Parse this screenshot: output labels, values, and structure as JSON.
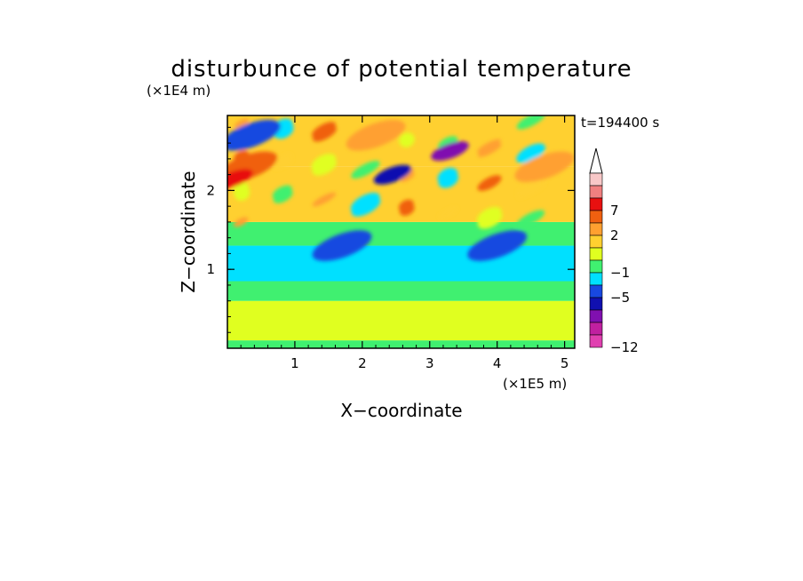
{
  "chart_data": {
    "type": "heatmap",
    "title": "disturbunce of potential temperature",
    "xlabel": "X−coordinate",
    "ylabel": "Z−coordinate",
    "x_scale_label": "(×1E5 m)",
    "y_scale_label": "(×1E4 m)",
    "time_label": "t=194400 s",
    "xlim": [
      0,
      5.15
    ],
    "ylim": [
      0,
      2.95
    ],
    "xticks": [
      "1",
      "2",
      "3",
      "4",
      "5"
    ],
    "yticks": [
      "1",
      "2"
    ],
    "xtick_values": [
      1,
      2,
      3,
      4,
      5
    ],
    "ytick_values": [
      1,
      2
    ],
    "colorbar": {
      "labels": [
        "7",
        "2",
        "−1",
        "−5",
        "−12"
      ],
      "label_levels": [
        7,
        2,
        -1,
        -5,
        -12
      ],
      "level_colors": [
        {
          "level": -12,
          "color": "#e040b0"
        },
        {
          "level": -10,
          "color": "#c020a0"
        },
        {
          "level": -8,
          "color": "#8010b0"
        },
        {
          "level": -6,
          "color": "#1010b0"
        },
        {
          "level": -5,
          "color": "#1848e0"
        },
        {
          "level": -3,
          "color": "#00e0ff"
        },
        {
          "level": -1,
          "color": "#40f070"
        },
        {
          "level": 0,
          "color": "#e0ff20"
        },
        {
          "level": 1,
          "color": "#ffd030"
        },
        {
          "level": 2,
          "color": "#ffa030"
        },
        {
          "level": 4,
          "color": "#f06010"
        },
        {
          "level": 7,
          "color": "#e81010"
        },
        {
          "level": 9,
          "color": "#f08080"
        },
        {
          "level": 11,
          "color": "#f8c8c8"
        }
      ]
    },
    "field_bands": [
      {
        "z_range": [
          0.0,
          0.1
        ],
        "level": -1,
        "note": "near-surface green band"
      },
      {
        "z_range": [
          0.1,
          0.6
        ],
        "level": 0,
        "note": "lower yellow layer"
      },
      {
        "z_range": [
          0.6,
          0.85
        ],
        "level": -1,
        "note": "green layer"
      },
      {
        "z_range": [
          0.85,
          1.3
        ],
        "level": -3,
        "note": "cyan layer"
      },
      {
        "z_range": [
          1.3,
          1.6
        ],
        "level": -1,
        "note": "green layer"
      },
      {
        "z_range": [
          1.6,
          2.3
        ],
        "level": 1,
        "note": "wave pattern region"
      },
      {
        "z_range": [
          2.3,
          2.95
        ],
        "level": 1,
        "note": "upper region"
      }
    ],
    "features": [
      {
        "x": 0.3,
        "z": 2.3,
        "level": 4,
        "note": "warm anomaly upper-left"
      },
      {
        "x": 0.1,
        "z": 2.15,
        "level": 7,
        "note": "red core"
      },
      {
        "x": 0.35,
        "z": 2.7,
        "level": -5,
        "note": "cold anomaly top-left"
      },
      {
        "x": 1.7,
        "z": 1.3,
        "level": -5,
        "note": "cold blob lower layer"
      },
      {
        "x": 2.45,
        "z": 2.2,
        "level": -6,
        "note": "cold band tilted"
      },
      {
        "x": 3.3,
        "z": 2.5,
        "level": -8,
        "note": "coldest core"
      },
      {
        "x": 4.0,
        "z": 1.3,
        "level": -5,
        "note": "cold blob right"
      },
      {
        "x": 2.2,
        "z": 2.7,
        "level": 2,
        "note": "warm patches aloft"
      },
      {
        "x": 4.7,
        "z": 2.3,
        "level": 2,
        "note": "warm right edge"
      }
    ]
  }
}
